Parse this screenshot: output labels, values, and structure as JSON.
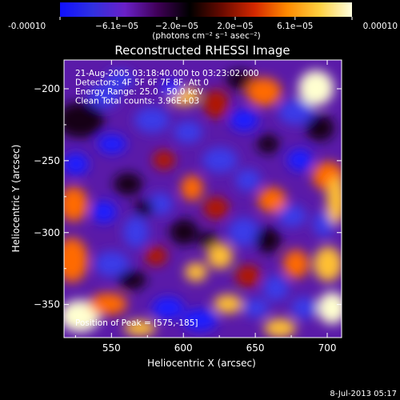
{
  "colorbar": {
    "ticks": [
      "-0.00010",
      "−6.1e−05",
      "−2.0e−05",
      "2.0e−05",
      "6.1e−05",
      "0.00010"
    ],
    "units": "(photons cm⁻² s⁻¹ asec⁻²)",
    "range": [
      -0.0001,
      0.0001
    ],
    "colors": [
      "#1010ff",
      "#3030e0",
      "#6a20c8",
      "#400058",
      "#000000",
      "#6a0a00",
      "#d42800",
      "#ff8a00",
      "#ffd040",
      "#ffffe0"
    ]
  },
  "chart_data": {
    "type": "heatmap",
    "title": "Reconstructed RHESSI Image",
    "xlabel": "Heliocentric X (arcsec)",
    "ylabel": "Heliocentric Y (arcsec)",
    "xlim": [
      517,
      710
    ],
    "ylim": [
      -373,
      -180
    ],
    "xticks": [
      550,
      600,
      650,
      700
    ],
    "yticks": [
      -200,
      -250,
      -300,
      -350
    ],
    "annotations": [
      "21-Aug-2005 03:18:40.000 to 03:23:02.000",
      "Detectors: 4F 5F 6F 7F 8F, Att 0",
      "Energy Range: 25.0 - 50.0 keV",
      "Clean     Total counts: 3.96E+03"
    ],
    "peak_label": "Position of Peak = [575,-185]",
    "peak": [
      575,
      -185
    ]
  },
  "footer": {
    "timestamp": "8-Jul-2013 05:17"
  }
}
